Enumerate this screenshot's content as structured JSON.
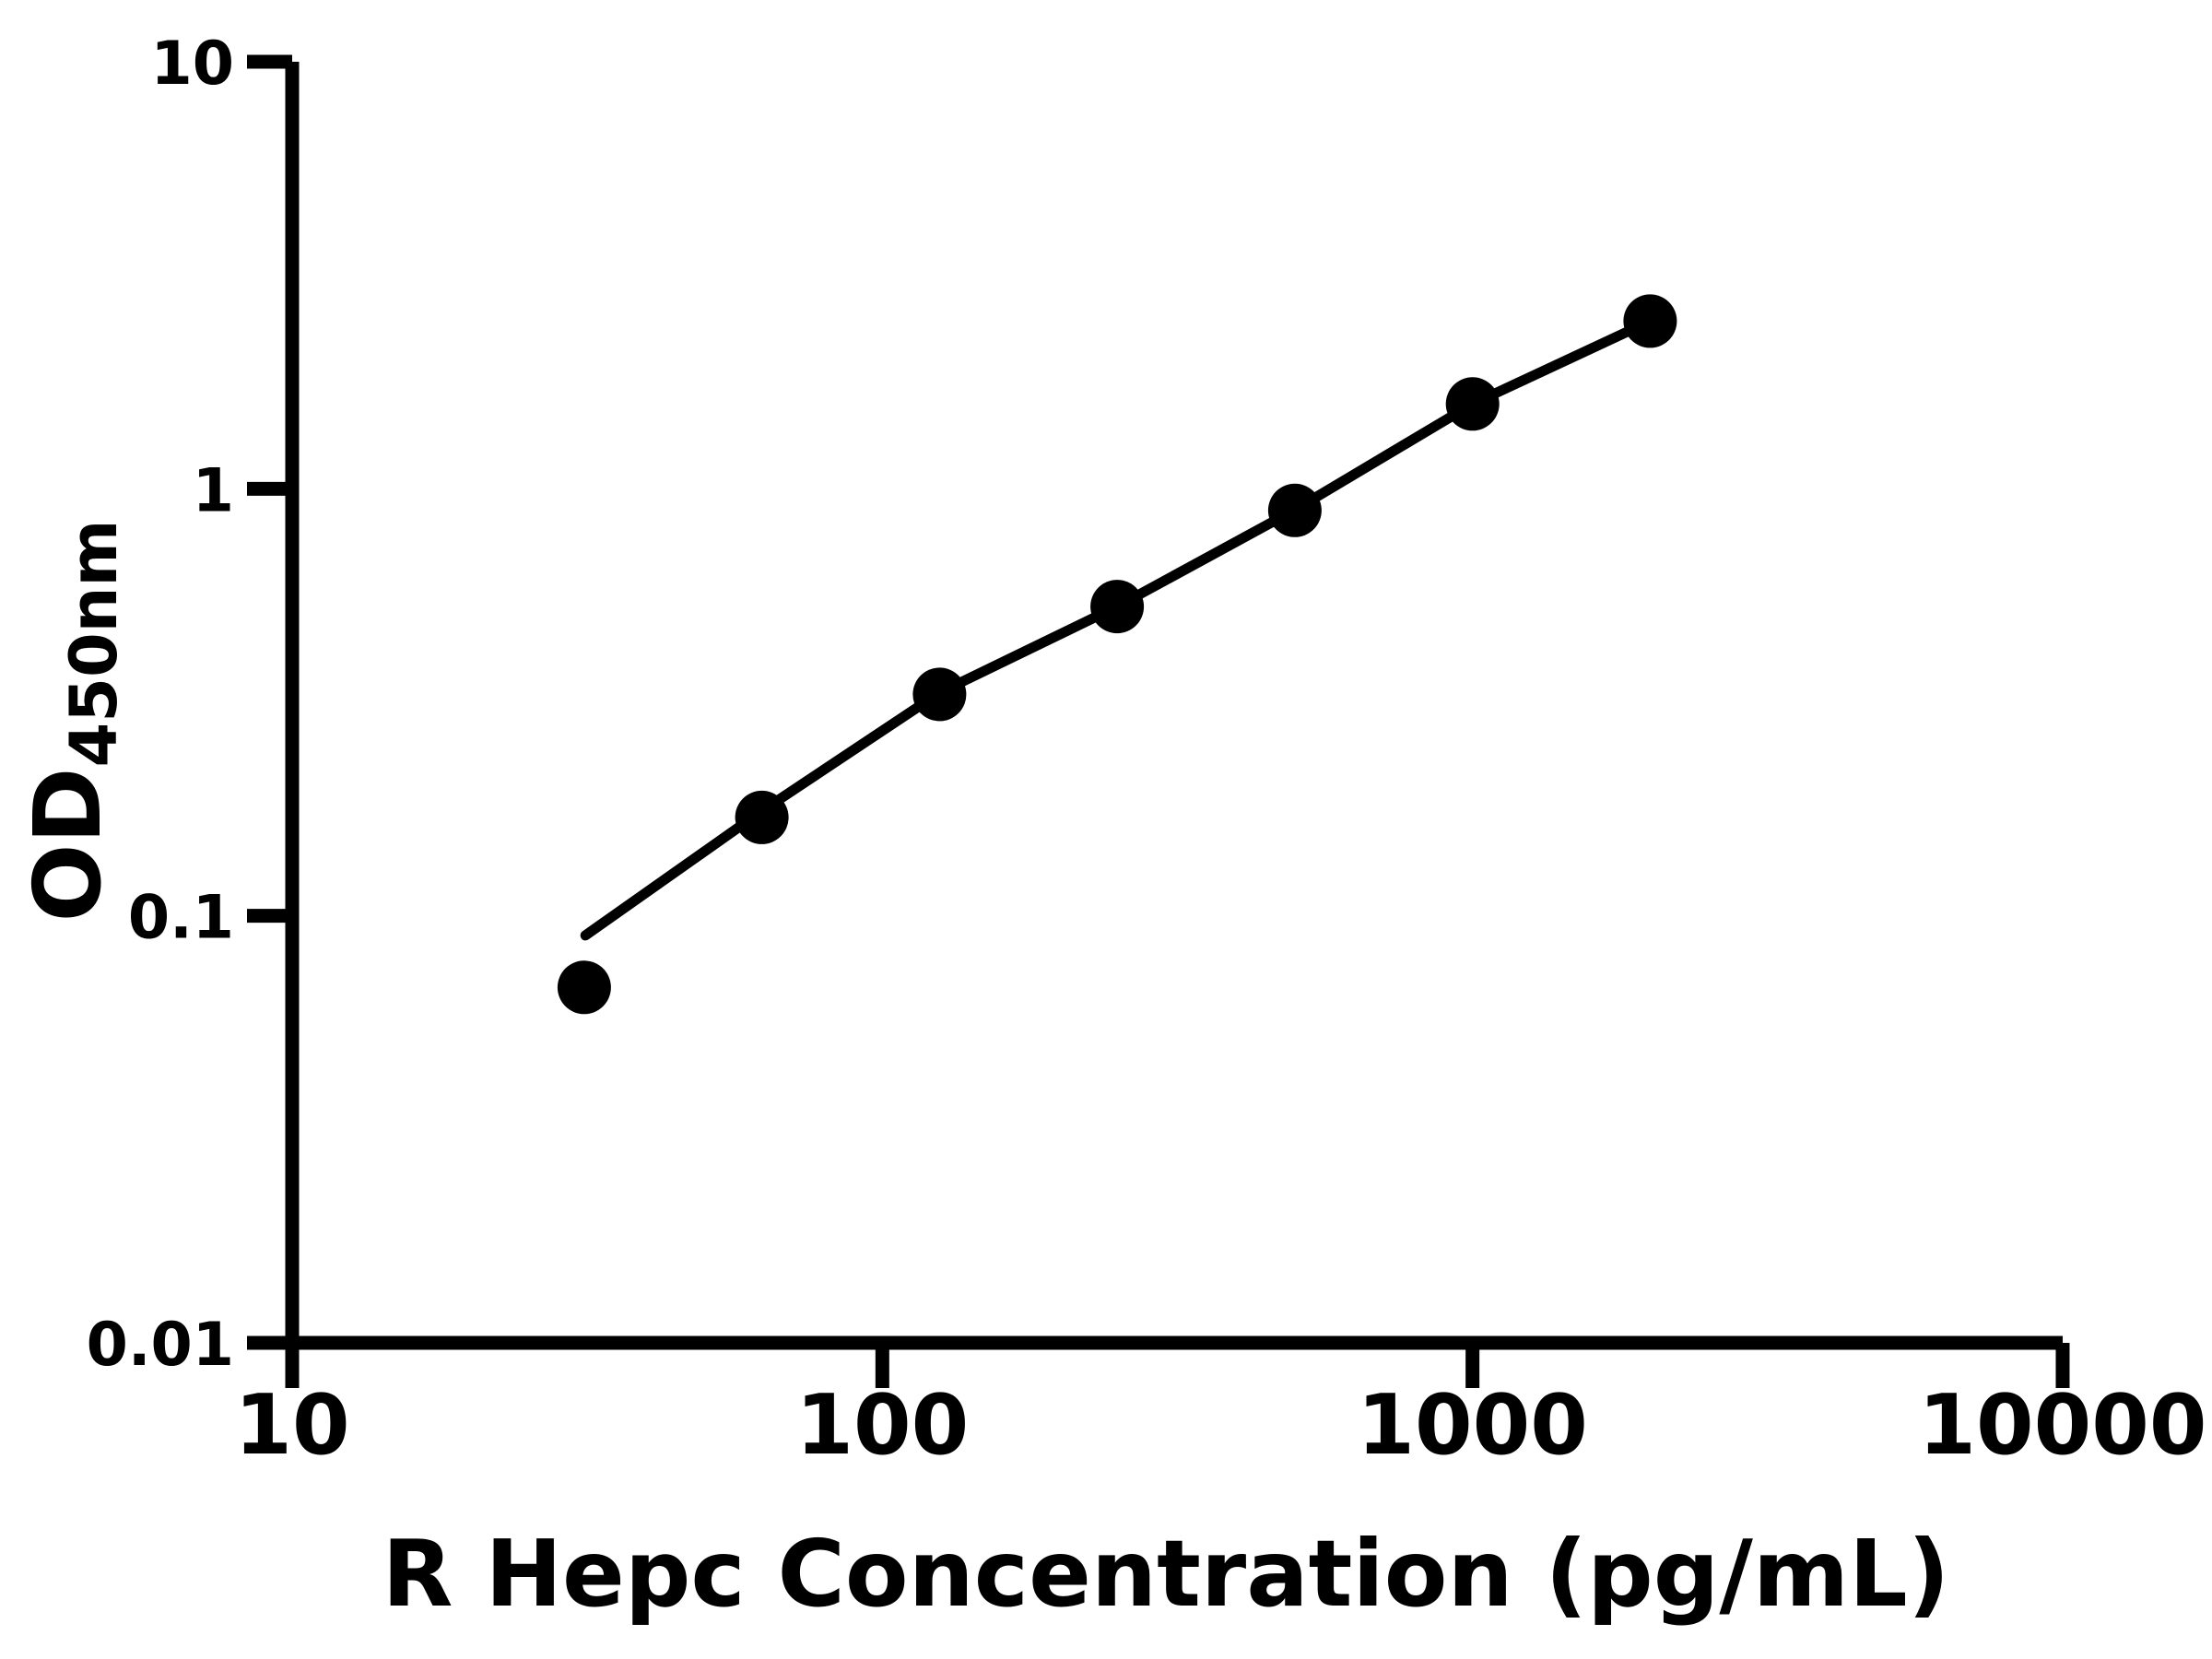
{
  "page": {
    "background": "#ffffff",
    "foreground": "#000000"
  },
  "chart_data": {
    "type": "scatter",
    "subtype": "elisa-standard-curve-with-fit-line",
    "title": "",
    "xlabel": "R Hepc Concentration (pg/mL)",
    "ylabel_main": "OD",
    "ylabel_subscript": "450nm",
    "x_scale": "log10",
    "y_scale": "log10",
    "xlim": [
      10,
      10000
    ],
    "ylim": [
      0.01,
      10
    ],
    "grid": false,
    "legend": "none",
    "axis_color": "#000000",
    "marker_color": "#000000",
    "line_color": "#000000",
    "x_ticks": [
      {
        "value": 10,
        "label": "10"
      },
      {
        "value": 100,
        "label": "100"
      },
      {
        "value": 1000,
        "label": "1000"
      },
      {
        "value": 10000,
        "label": "10000"
      }
    ],
    "y_ticks": [
      {
        "value": 10,
        "label": "10"
      },
      {
        "value": 1,
        "label": "1"
      },
      {
        "value": 0.1,
        "label": "0.1"
      },
      {
        "value": 0.01,
        "label": "0.01"
      }
    ],
    "points": [
      {
        "x": 31.25,
        "y": 0.068
      },
      {
        "x": 62.5,
        "y": 0.17
      },
      {
        "x": 125,
        "y": 0.33
      },
      {
        "x": 250,
        "y": 0.53
      },
      {
        "x": 500,
        "y": 0.89
      },
      {
        "x": 1000,
        "y": 1.58
      },
      {
        "x": 2000,
        "y": 2.47
      }
    ],
    "fit_curve": [
      {
        "x": 31.4,
        "y": 0.09
      },
      {
        "x": 62.5,
        "y": 0.176
      },
      {
        "x": 125,
        "y": 0.333
      },
      {
        "x": 250,
        "y": 0.53
      },
      {
        "x": 500,
        "y": 0.893
      },
      {
        "x": 1000,
        "y": 1.58
      },
      {
        "x": 2000,
        "y": 2.47
      }
    ]
  }
}
